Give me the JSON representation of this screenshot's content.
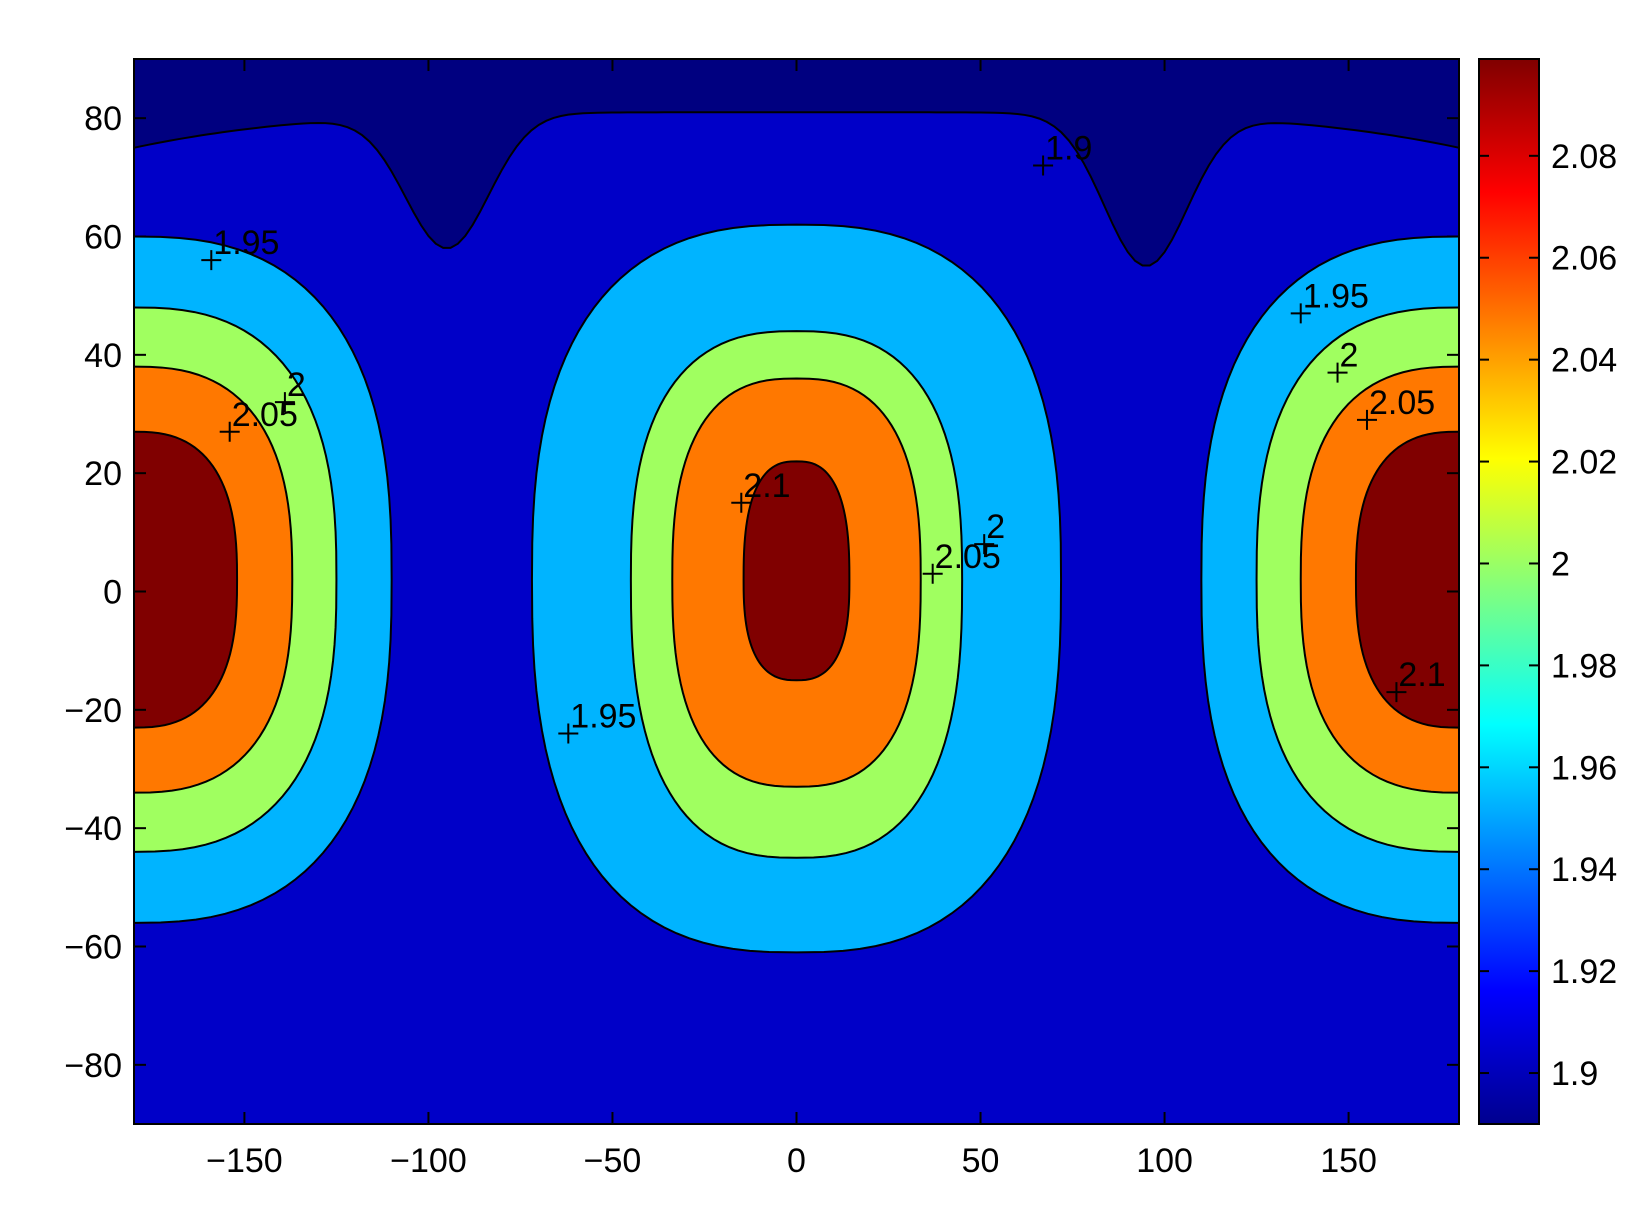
{
  "chart_data": {
    "type": "contour",
    "title": "",
    "xlabel": "",
    "ylabel": "",
    "xlim": [
      -180,
      180
    ],
    "ylim": [
      -90,
      90
    ],
    "xticks": [
      -150,
      -100,
      -50,
      0,
      50,
      100,
      150
    ],
    "yticks": [
      -80,
      -60,
      -40,
      -20,
      0,
      20,
      40,
      60,
      80
    ],
    "xtick_labels": [
      "−150",
      "−100",
      "−50",
      "0",
      "50",
      "100",
      "150"
    ],
    "ytick_labels": [
      "−80",
      "−60",
      "−40",
      "−20",
      "0",
      "20",
      "40",
      "60",
      "80"
    ],
    "contour_levels": [
      1.9,
      1.95,
      2,
      2.05,
      2.1
    ],
    "level_colors": [
      "#000080",
      "#0000c8",
      "#00b4ff",
      "#a0ff60",
      "#ff7800",
      "#800000"
    ],
    "boundaries": {
      "y_1_9_min_at_x": [
        [
          -95,
          58
        ],
        [
          95,
          55
        ]
      ],
      "y_1_9_max": 81,
      "y_1_9_edge": 75
    },
    "regions": [
      {
        "center_x": 0,
        "center_y": 2,
        "semi_x": [
          115,
          72,
          54,
          23
        ],
        "semi_y_top": [
          60,
          42,
          34,
          20
        ],
        "semi_y_bottom": [
          63,
          47,
          35,
          17
        ]
      },
      {
        "center_x": -180,
        "center_y": 2,
        "semi_x": [
          70,
          55,
          43,
          28
        ]
      },
      {
        "center_x": 180,
        "center_y": 2,
        "semi_x": [
          70,
          55,
          43,
          28
        ]
      }
    ],
    "contour_labels": [
      {
        "text": "1.9",
        "x": 67,
        "y": 72
      },
      {
        "text": "1.95",
        "x": -159,
        "y": 56
      },
      {
        "text": "1.95",
        "x": 137,
        "y": 47
      },
      {
        "text": "1.95",
        "x": -62,
        "y": -24
      },
      {
        "text": "2",
        "x": -139,
        "y": 32
      },
      {
        "text": "2",
        "x": 147,
        "y": 37
      },
      {
        "text": "2",
        "x": 51,
        "y": 8
      },
      {
        "text": "2.05",
        "x": -154,
        "y": 27
      },
      {
        "text": "2.05",
        "x": 155,
        "y": 29
      },
      {
        "text": "2.05",
        "x": 37,
        "y": 3
      },
      {
        "text": "2.1",
        "x": -15,
        "y": 15
      },
      {
        "text": "2.1",
        "x": 163,
        "y": -17
      }
    ],
    "colorbar": {
      "range": [
        1.89,
        2.099
      ],
      "ticks": [
        1.9,
        1.92,
        1.94,
        1.96,
        1.98,
        2,
        2.02,
        2.04,
        2.06,
        2.08
      ],
      "tick_labels": [
        "1.9",
        "1.92",
        "1.94",
        "1.96",
        "1.98",
        "2",
        "2.02",
        "2.04",
        "2.06",
        "2.08"
      ],
      "colormap": "jet"
    },
    "grid": false
  }
}
